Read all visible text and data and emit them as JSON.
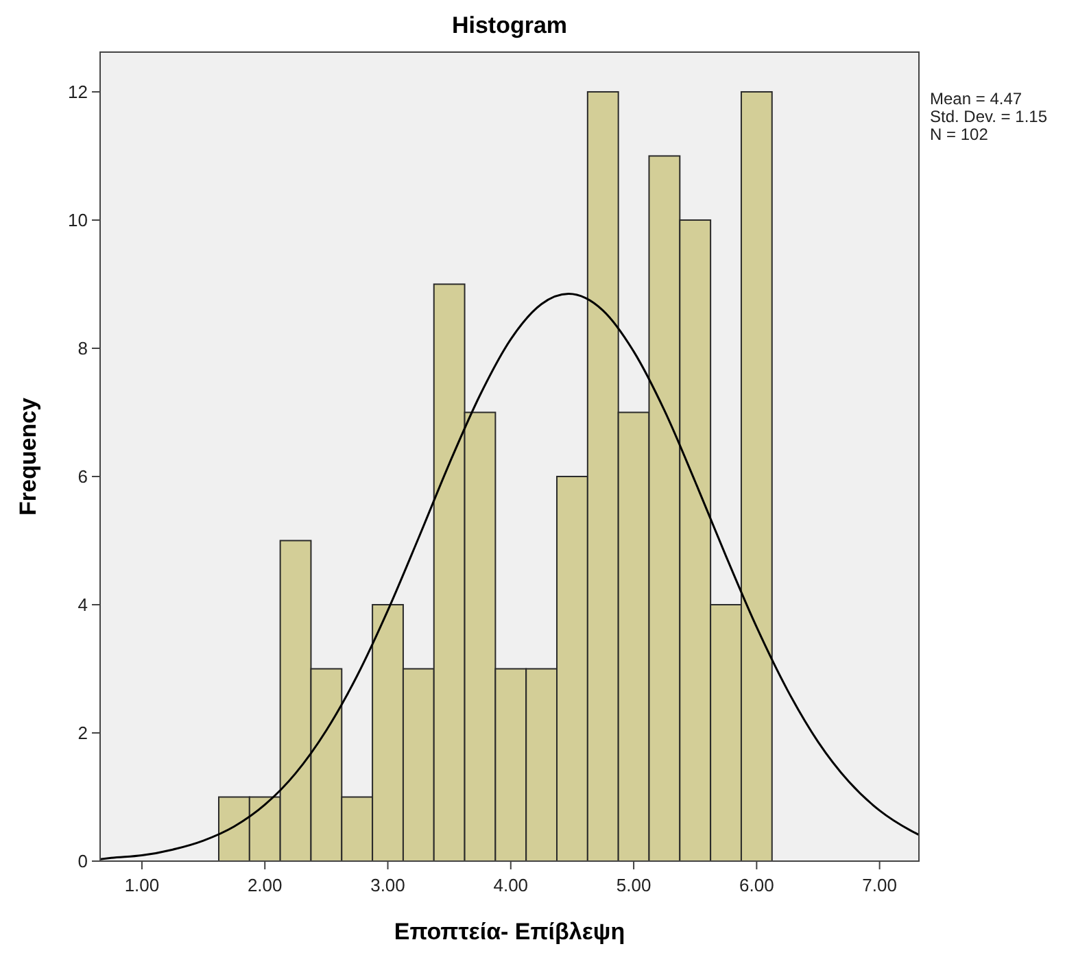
{
  "chart_data": {
    "type": "histogram",
    "title": "Histogram",
    "xlabel": "Εποπτεία- Επίβλεψη",
    "ylabel": "Frequency",
    "annotations": [
      "Mean = 4.47",
      "Std. Dev. = 1.15",
      "N = 102"
    ],
    "xlim": [
      0.66,
      7.32
    ],
    "ylim": [
      0,
      12.62
    ],
    "xticks": [
      {
        "value": 1,
        "label": "1.00"
      },
      {
        "value": 2,
        "label": "2.00"
      },
      {
        "value": 3,
        "label": "3.00"
      },
      {
        "value": 4,
        "label": "4.00"
      },
      {
        "value": 5,
        "label": "5.00"
      },
      {
        "value": 6,
        "label": "6.00"
      },
      {
        "value": 7,
        "label": "7.00"
      }
    ],
    "yticks": [
      0,
      2,
      4,
      6,
      8,
      10,
      12
    ],
    "grid": false,
    "series": [
      {
        "color": "#d3ce97",
        "bins": [
          1.625,
          1.875,
          2.125,
          2.375,
          2.625,
          2.875,
          3.125,
          3.375,
          3.625,
          3.875,
          4.125,
          4.375,
          4.625,
          4.875,
          5.125,
          5.375,
          5.625,
          5.875,
          6.125
        ],
        "values": [
          1,
          1,
          5,
          3,
          1,
          4,
          3,
          9,
          7,
          3,
          3,
          6,
          12,
          7,
          11,
          10,
          4,
          12
        ]
      },
      {
        "type": "line",
        "color": "#000000",
        "x": [
          0.66,
          0.75,
          1.0,
          1.25,
          1.5,
          1.75,
          2.0,
          2.25,
          2.5,
          2.75,
          3.0,
          3.25,
          3.5,
          3.75,
          4.0,
          4.25,
          4.47,
          4.75,
          5.0,
          5.25,
          5.5,
          5.75,
          6.0,
          6.25,
          6.5,
          6.75,
          7.0,
          7.25,
          7.32
        ],
        "values": [
          0.03,
          0.05,
          0.09,
          0.18,
          0.32,
          0.54,
          0.88,
          1.37,
          2.04,
          2.89,
          3.91,
          5.04,
          6.2,
          7.27,
          8.14,
          8.69,
          8.85,
          8.59,
          7.95,
          7.03,
          5.92,
          4.76,
          3.65,
          2.67,
          1.86,
          1.24,
          0.79,
          0.48,
          0.41
        ]
      }
    ]
  }
}
